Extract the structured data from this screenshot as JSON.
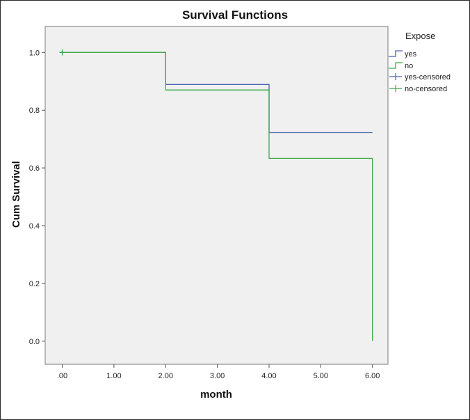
{
  "chart_data": {
    "type": "line",
    "title": "Survival Functions",
    "xlabel": "month",
    "ylabel": "Cum Survival",
    "xlim": [
      0,
      6
    ],
    "ylim": [
      0,
      1
    ],
    "x_ticks": [
      ".00",
      "1.00",
      "2.00",
      "3.00",
      "4.00",
      "5.00",
      "6.00"
    ],
    "y_ticks": [
      "0.0",
      "0.2",
      "0.4",
      "0.6",
      "0.8",
      "1.0"
    ],
    "grid": false,
    "legend": {
      "title": "Expose",
      "placement": "right",
      "entries": [
        "yes",
        "no",
        "yes-censored",
        "no-censored"
      ]
    },
    "series": [
      {
        "name": "yes",
        "style": "step",
        "color": "#4a5faf",
        "x": [
          0,
          2,
          2,
          4,
          4,
          6
        ],
        "y": [
          1.0,
          1.0,
          0.889,
          0.889,
          0.722,
          0.722
        ]
      },
      {
        "name": "no",
        "style": "step",
        "color": "#3bab4a",
        "x": [
          0,
          2,
          2,
          4,
          4,
          6,
          6
        ],
        "y": [
          1.0,
          1.0,
          0.87,
          0.87,
          0.633,
          0.633,
          0.0
        ]
      }
    ],
    "censored": [
      {
        "name": "yes-censored",
        "color": "#4a5faf",
        "x": [
          0
        ],
        "y": [
          1.0
        ]
      },
      {
        "name": "no-censored",
        "color": "#3bab4a",
        "x": [
          0
        ],
        "y": [
          1.0
        ]
      }
    ]
  }
}
